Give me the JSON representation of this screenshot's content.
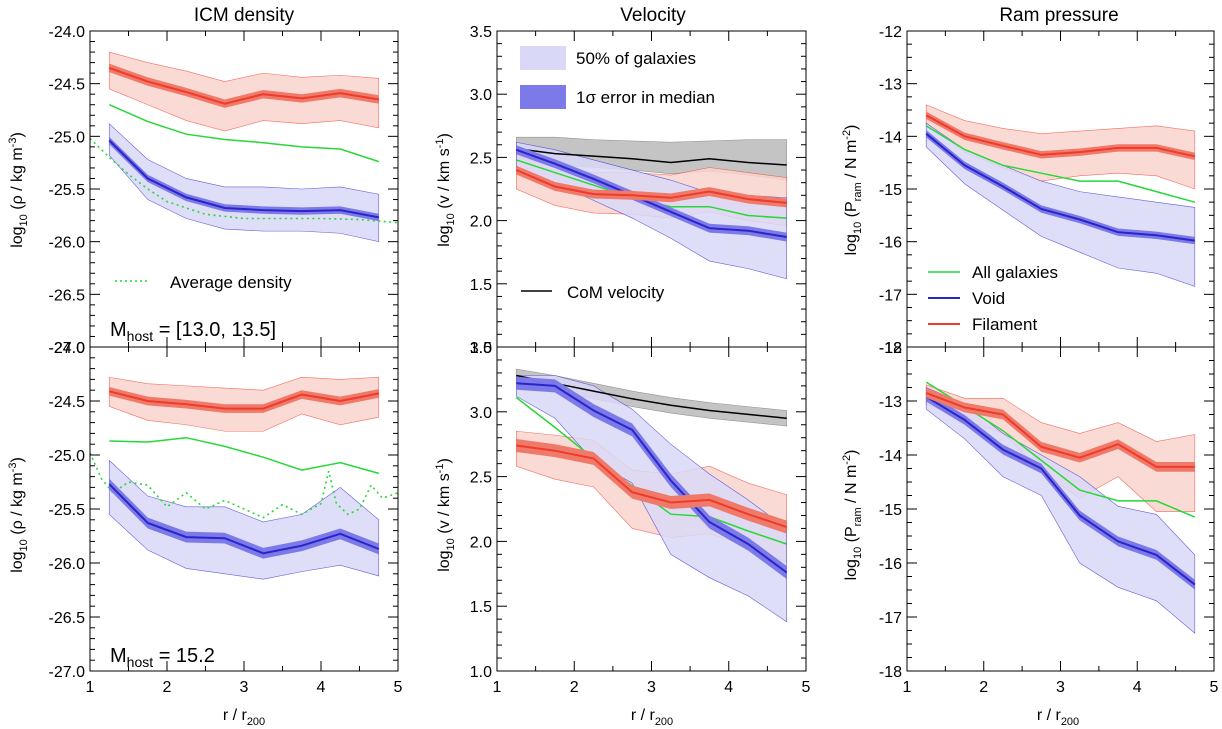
{
  "figure": {
    "column_titles": [
      "ICM density",
      "Velocity",
      "Ram pressure"
    ],
    "xlabel": "r / r",
    "xlabel_sub": "200"
  },
  "legend": {
    "band_outer": "50% of galaxies",
    "band_inner": "1σ error in median",
    "com": "CoM velocity",
    "avg_density": "Average density",
    "all": "All galaxies",
    "void": "Void",
    "filament": "Filament"
  },
  "mhost": {
    "top_prefix": "M",
    "top_sub": "host",
    "top_value": " = [13.0, 13.5]",
    "bottom_prefix": "M",
    "bottom_sub": "host",
    "bottom_value": " = 15.2"
  },
  "colors": {
    "filament": "#ee3b2b",
    "filament_band": "#f9d3cd",
    "filament_err": "#f07a6a",
    "void": "#2b24c9",
    "void_band": "#d9d8f7",
    "void_err": "#7c7ae8",
    "all": "#27d838",
    "com": "#000000",
    "com_band": "#c4c4c4"
  },
  "chart_data": [
    {
      "type": "line",
      "panel": "top-left",
      "title": "ICM density",
      "ylabel": "log10 (ρ / kg m-3)",
      "xlim": [
        1,
        5
      ],
      "ylim": [
        -27.0,
        -24.0
      ],
      "xticks": [
        "1",
        "2",
        "3",
        "4",
        "5"
      ],
      "yticks": [
        "-27.0",
        "-26.5",
        "-26.0",
        "-25.5",
        "-25.0",
        "-24.5",
        "-24.0"
      ],
      "x": [
        1.25,
        1.75,
        2.25,
        2.75,
        3.25,
        3.75,
        4.25,
        4.75
      ],
      "series": [
        {
          "name": "Filament",
          "values": [
            -24.35,
            -24.48,
            -24.58,
            -24.69,
            -24.6,
            -24.64,
            -24.59,
            -24.65
          ],
          "band_lo": [
            -24.55,
            -24.7,
            -24.85,
            -24.95,
            -24.85,
            -24.88,
            -24.85,
            -24.92
          ],
          "band_hi": [
            -24.2,
            -24.3,
            -24.38,
            -24.48,
            -24.4,
            -24.44,
            -24.42,
            -24.45
          ],
          "err": 0.04
        },
        {
          "name": "All galaxies",
          "values": [
            -24.7,
            -24.86,
            -24.98,
            -25.03,
            -25.06,
            -25.1,
            -25.12,
            -25.24
          ]
        },
        {
          "name": "Void",
          "values": [
            -25.04,
            -25.4,
            -25.58,
            -25.68,
            -25.7,
            -25.71,
            -25.7,
            -25.77
          ],
          "band_lo": [
            -25.18,
            -25.6,
            -25.78,
            -25.88,
            -25.9,
            -25.9,
            -25.92,
            -26.0
          ],
          "band_hi": [
            -24.88,
            -25.22,
            -25.4,
            -25.48,
            -25.48,
            -25.5,
            -25.48,
            -25.55
          ],
          "err": 0.035
        },
        {
          "name": "Average density",
          "style": "dotted",
          "x": [
            1.0,
            1.25,
            1.5,
            1.75,
            2.0,
            2.5,
            3.0,
            3.5,
            4.0,
            4.5,
            5.0
          ],
          "values": [
            -25.02,
            -25.2,
            -25.36,
            -25.5,
            -25.62,
            -25.74,
            -25.78,
            -25.78,
            -25.78,
            -25.79,
            -25.82
          ]
        }
      ]
    },
    {
      "type": "line",
      "panel": "top-middle",
      "title": "Velocity",
      "ylabel": "log10 (v / km s-1)",
      "xlim": [
        1,
        5
      ],
      "ylim": [
        1.0,
        3.5
      ],
      "xticks": [
        "1",
        "2",
        "3",
        "4",
        "5"
      ],
      "yticks": [
        "1.0",
        "1.5",
        "2.0",
        "2.5",
        "3.0",
        "3.5"
      ],
      "x": [
        1.25,
        1.75,
        2.25,
        2.75,
        3.25,
        3.75,
        4.25,
        4.75
      ],
      "series": [
        {
          "name": "CoM velocity",
          "values": [
            2.57,
            2.53,
            2.51,
            2.49,
            2.46,
            2.49,
            2.46,
            2.44
          ],
          "band_lo": [
            2.47,
            2.44,
            2.42,
            2.4,
            2.37,
            2.39,
            2.36,
            2.32
          ],
          "band_hi": [
            2.66,
            2.66,
            2.64,
            2.63,
            2.62,
            2.63,
            2.64,
            2.64
          ]
        },
        {
          "name": "Filament",
          "values": [
            2.4,
            2.27,
            2.21,
            2.2,
            2.18,
            2.23,
            2.17,
            2.14
          ],
          "band_lo": [
            2.25,
            2.12,
            2.06,
            2.05,
            2.02,
            2.07,
            2.0,
            1.96
          ],
          "band_hi": [
            2.52,
            2.42,
            2.38,
            2.38,
            2.36,
            2.42,
            2.38,
            2.34
          ],
          "err": 0.035
        },
        {
          "name": "All galaxies",
          "values": [
            2.48,
            2.38,
            2.28,
            2.18,
            2.11,
            2.11,
            2.04,
            2.02
          ]
        },
        {
          "name": "Void",
          "values": [
            2.56,
            2.45,
            2.33,
            2.2,
            2.07,
            1.94,
            1.92,
            1.87
          ],
          "band_lo": [
            2.42,
            2.3,
            2.16,
            2.02,
            1.86,
            1.68,
            1.62,
            1.54
          ],
          "band_hi": [
            2.62,
            2.56,
            2.48,
            2.4,
            2.32,
            2.22,
            2.2,
            2.18
          ],
          "err": 0.035
        }
      ],
      "legend_labels": [
        "50% of galaxies",
        "1σ error in median",
        "CoM velocity"
      ]
    },
    {
      "type": "line",
      "panel": "top-right",
      "title": "Ram pressure",
      "ylabel": "log10 (Pram / N m-2)",
      "xlim": [
        1,
        5
      ],
      "ylim": [
        -18,
        -12
      ],
      "xticks": [
        "1",
        "2",
        "3",
        "4",
        "5"
      ],
      "yticks": [
        "-18",
        "-17",
        "-16",
        "-15",
        "-14",
        "-13",
        "-12"
      ],
      "x": [
        1.25,
        1.75,
        2.25,
        2.75,
        3.25,
        3.75,
        4.25,
        4.75
      ],
      "series": [
        {
          "name": "Filament",
          "values": [
            -13.6,
            -14.0,
            -14.18,
            -14.35,
            -14.3,
            -14.22,
            -14.22,
            -14.38
          ],
          "band_lo": [
            -13.75,
            -14.3,
            -14.6,
            -14.85,
            -14.75,
            -14.7,
            -14.75,
            -15.0
          ],
          "band_hi": [
            -13.4,
            -13.7,
            -13.85,
            -13.95,
            -13.9,
            -13.85,
            -13.8,
            -13.9
          ],
          "err": 0.07
        },
        {
          "name": "All galaxies",
          "values": [
            -13.8,
            -14.25,
            -14.55,
            -14.7,
            -14.85,
            -14.85,
            -15.05,
            -15.25
          ]
        },
        {
          "name": "Void",
          "values": [
            -13.95,
            -14.55,
            -14.95,
            -15.38,
            -15.58,
            -15.82,
            -15.88,
            -15.98
          ],
          "band_lo": [
            -14.2,
            -14.9,
            -15.4,
            -15.9,
            -16.2,
            -16.5,
            -16.6,
            -16.85
          ],
          "band_hi": [
            -13.75,
            -14.25,
            -14.55,
            -14.85,
            -15.05,
            -15.15,
            -15.25,
            -15.35
          ],
          "err": 0.07
        }
      ],
      "legend_labels": [
        "All galaxies",
        "Void",
        "Filament"
      ]
    },
    {
      "type": "line",
      "panel": "bottom-left",
      "ylabel": "log10 (ρ / kg m-3)",
      "xlabel": "r / r200",
      "xlim": [
        1,
        5
      ],
      "ylim": [
        -27.0,
        -24.0
      ],
      "xticks": [
        "1",
        "2",
        "3",
        "4",
        "5"
      ],
      "yticks": [
        "-27.0",
        "-26.5",
        "-26.0",
        "-25.5",
        "-25.0",
        "-24.5",
        "-24.0"
      ],
      "x": [
        1.25,
        1.75,
        2.25,
        2.75,
        3.25,
        3.75,
        4.25,
        4.75
      ],
      "series": [
        {
          "name": "Filament",
          "values": [
            -24.41,
            -24.5,
            -24.53,
            -24.57,
            -24.57,
            -24.44,
            -24.5,
            -24.43
          ],
          "band_lo": [
            -24.55,
            -24.68,
            -24.72,
            -24.78,
            -24.78,
            -24.62,
            -24.72,
            -24.65
          ],
          "band_hi": [
            -24.28,
            -24.34,
            -24.36,
            -24.38,
            -24.4,
            -24.28,
            -24.3,
            -24.28
          ],
          "err": 0.04
        },
        {
          "name": "All galaxies",
          "values": [
            -24.87,
            -24.88,
            -24.84,
            -24.92,
            -25.02,
            -25.14,
            -25.07,
            -25.17
          ]
        },
        {
          "name": "Void",
          "values": [
            -25.27,
            -25.63,
            -25.76,
            -25.77,
            -25.91,
            -25.84,
            -25.73,
            -25.87
          ],
          "band_lo": [
            -25.55,
            -25.88,
            -26.05,
            -26.1,
            -26.15,
            -26.08,
            -26.02,
            -26.12
          ],
          "band_hi": [
            -25.05,
            -25.38,
            -25.48,
            -25.48,
            -25.62,
            -25.55,
            -25.3,
            -25.6
          ],
          "err": 0.05
        },
        {
          "name": "Average density",
          "style": "dotted",
          "x": [
            1.0,
            1.15,
            1.3,
            1.5,
            1.75,
            2.0,
            2.25,
            2.5,
            2.75,
            3.0,
            3.25,
            3.5,
            3.75,
            4.0,
            4.1,
            4.2,
            4.35,
            4.5,
            4.65,
            4.8,
            5.0
          ],
          "values": [
            -24.98,
            -25.22,
            -25.35,
            -25.25,
            -25.28,
            -25.48,
            -25.35,
            -25.5,
            -25.42,
            -25.5,
            -25.58,
            -25.46,
            -25.55,
            -25.45,
            -25.15,
            -25.45,
            -25.55,
            -25.5,
            -25.28,
            -25.4,
            -25.35
          ]
        }
      ]
    },
    {
      "type": "line",
      "panel": "bottom-middle",
      "ylabel": "log10 (v / km s-1)",
      "xlabel": "r / r200",
      "xlim": [
        1,
        5
      ],
      "ylim": [
        1.0,
        3.5
      ],
      "xticks": [
        "1",
        "2",
        "3",
        "4",
        "5"
      ],
      "yticks": [
        "1.0",
        "1.5",
        "2.0",
        "2.5",
        "3.0",
        "3.5"
      ],
      "x": [
        1.25,
        1.75,
        2.25,
        2.75,
        3.25,
        3.75,
        4.25,
        4.75
      ],
      "series": [
        {
          "name": "CoM velocity",
          "values": [
            3.28,
            3.22,
            3.16,
            3.1,
            3.05,
            3.01,
            2.98,
            2.95
          ],
          "band_lo": [
            3.22,
            3.16,
            3.1,
            3.04,
            2.99,
            2.95,
            2.92,
            2.89
          ],
          "band_hi": [
            3.33,
            3.28,
            3.22,
            3.16,
            3.11,
            3.07,
            3.04,
            3.01
          ]
        },
        {
          "name": "Filament",
          "values": [
            2.74,
            2.7,
            2.64,
            2.38,
            2.3,
            2.32,
            2.21,
            2.11
          ],
          "band_lo": [
            2.58,
            2.48,
            2.42,
            2.1,
            2.03,
            2.06,
            1.96,
            1.84
          ],
          "band_hi": [
            2.85,
            2.82,
            2.78,
            2.55,
            2.52,
            2.58,
            2.45,
            2.36
          ],
          "err": 0.05
        },
        {
          "name": "All galaxies",
          "values": [
            3.11,
            2.88,
            2.64,
            2.43,
            2.21,
            2.19,
            2.08,
            1.98
          ]
        },
        {
          "name": "Void",
          "values": [
            3.22,
            3.2,
            3.01,
            2.86,
            2.47,
            2.15,
            1.98,
            1.76
          ],
          "band_lo": [
            3.12,
            2.95,
            2.62,
            2.45,
            1.9,
            1.72,
            1.58,
            1.38
          ],
          "band_hi": [
            3.28,
            3.28,
            3.2,
            3.02,
            2.75,
            2.52,
            2.32,
            2.1
          ],
          "err": 0.05
        }
      ]
    },
    {
      "type": "line",
      "panel": "bottom-right",
      "ylabel": "log10 (Pram / N m-2)",
      "xlabel": "r / r200",
      "xlim": [
        1,
        5
      ],
      "ylim": [
        -18,
        -12
      ],
      "xticks": [
        "1",
        "2",
        "3",
        "4",
        "5"
      ],
      "yticks": [
        "-18",
        "-17",
        "-16",
        "-15",
        "-14",
        "-13",
        "-12"
      ],
      "x": [
        1.25,
        1.75,
        2.25,
        2.75,
        3.25,
        3.75,
        4.25,
        4.75
      ],
      "series": [
        {
          "name": "Filament",
          "values": [
            -12.85,
            -13.12,
            -13.25,
            -13.85,
            -14.05,
            -13.8,
            -14.22,
            -14.22
          ],
          "band_lo": [
            -13.05,
            -13.35,
            -13.6,
            -14.3,
            -14.8,
            -14.4,
            -15.05,
            -15.05
          ],
          "band_hi": [
            -12.7,
            -12.95,
            -12.95,
            -13.4,
            -13.6,
            -13.4,
            -13.75,
            -13.62
          ],
          "err": 0.09
        },
        {
          "name": "All galaxies",
          "values": [
            -12.65,
            -13.1,
            -13.55,
            -14.1,
            -14.65,
            -14.85,
            -14.85,
            -15.15
          ]
        },
        {
          "name": "Void",
          "values": [
            -12.92,
            -13.35,
            -13.9,
            -14.25,
            -15.12,
            -15.6,
            -15.85,
            -16.4
          ],
          "band_lo": [
            -13.15,
            -13.7,
            -14.4,
            -14.75,
            -16.0,
            -16.45,
            -16.7,
            -17.3
          ],
          "band_hi": [
            -12.75,
            -13.05,
            -13.6,
            -14.0,
            -14.4,
            -14.95,
            -15.1,
            -15.85
          ],
          "err": 0.09
        }
      ]
    }
  ]
}
